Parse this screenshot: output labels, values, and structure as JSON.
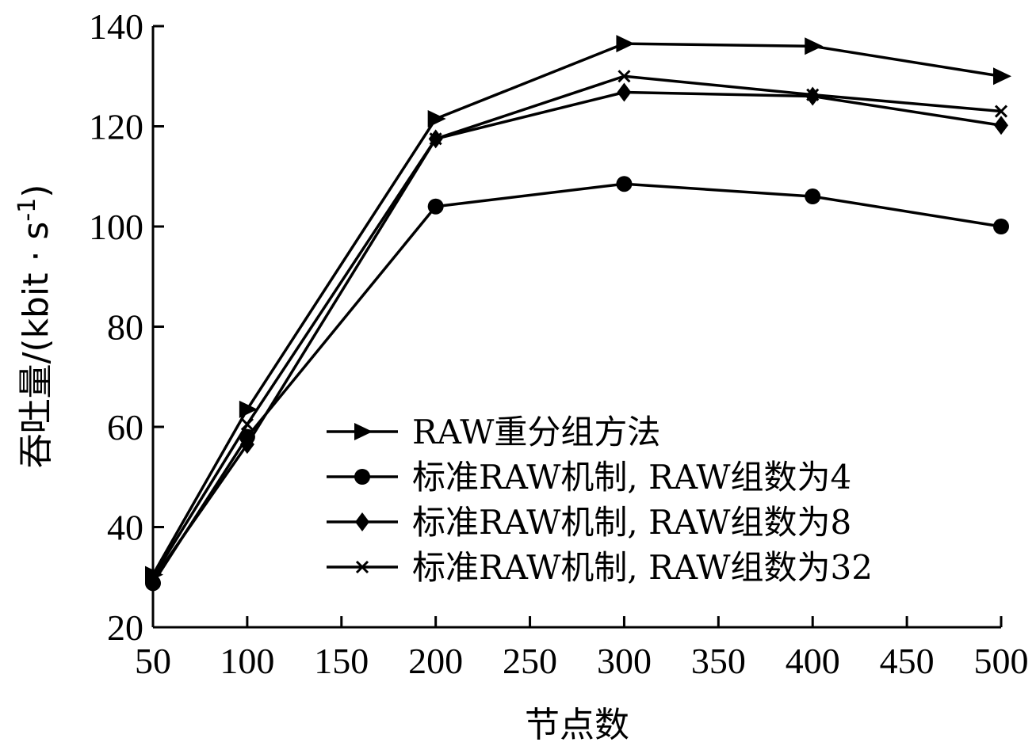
{
  "chart_data": {
    "type": "line",
    "title": "",
    "xlabel": "节点数",
    "ylabel": "吞吐量/(kbit · s",
    "ylabel_superscript": "-1",
    "ylabel_close": ")",
    "x_ticks": [
      50,
      100,
      150,
      200,
      250,
      300,
      350,
      400,
      450,
      500
    ],
    "y_ticks": [
      20,
      40,
      60,
      80,
      100,
      120,
      140
    ],
    "xlim": [
      50,
      500
    ],
    "ylim": [
      20,
      140
    ],
    "grid": false,
    "legend_position": "lower-right",
    "x": [
      50,
      100,
      200,
      300,
      400,
      500
    ],
    "series": [
      {
        "name": "RAW重分组方法",
        "marker": "triangle-right",
        "values": [
          30.5,
          63.5,
          121.5,
          136.5,
          136,
          130
        ]
      },
      {
        "name": "标准RAW机制, RAW组数为4",
        "marker": "circle",
        "values": [
          28.8,
          58,
          104,
          108.5,
          106,
          100
        ]
      },
      {
        "name": "标准RAW机制, RAW组数为8",
        "marker": "diamond",
        "values": [
          29.5,
          56.5,
          117.5,
          126.8,
          126,
          120.2
        ]
      },
      {
        "name": "标准RAW机制, RAW组数为32",
        "marker": "x",
        "values": [
          30,
          60.5,
          117.5,
          130,
          126.3,
          123
        ]
      }
    ]
  }
}
